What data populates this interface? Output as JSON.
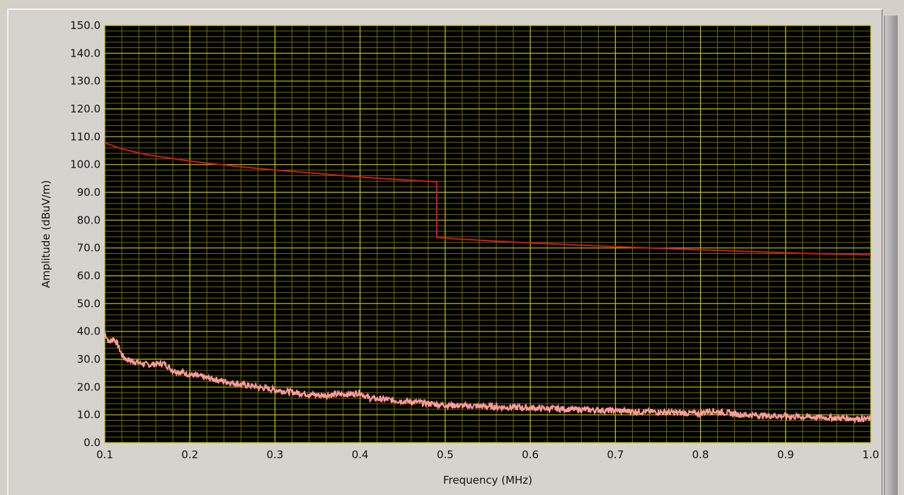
{
  "chart_data": {
    "type": "line",
    "title": "",
    "xlabel": "Frequency (MHz)",
    "ylabel": "Amplitude (dBuV/m)",
    "xlim": [
      0.1,
      1.0
    ],
    "ylim": [
      0.0,
      150.0
    ],
    "x_ticks": [
      "0.1",
      "0.2",
      "0.3",
      "0.4",
      "0.5",
      "0.6",
      "0.7",
      "0.8",
      "0.9",
      "1.0"
    ],
    "y_ticks": [
      "0.0",
      "10.0",
      "20.0",
      "30.0",
      "40.0",
      "50.0",
      "60.0",
      "70.0",
      "80.0",
      "90.0",
      "100.0",
      "110.0",
      "120.0",
      "130.0",
      "140.0",
      "150.0"
    ],
    "grid": true,
    "minor_grid": true,
    "background_color": "#000000",
    "grid_color": "#c8c800",
    "minor_grid_color": "#6e6e00",
    "series": [
      {
        "color": "#cc1a1a",
        "x": [
          0.1,
          0.12,
          0.15,
          0.2,
          0.25,
          0.3,
          0.35,
          0.4,
          0.45,
          0.49,
          0.4901,
          0.5,
          0.55,
          0.6,
          0.65,
          0.7,
          0.75,
          0.8,
          0.85,
          0.9,
          0.95,
          1.0
        ],
        "y": [
          107.8,
          105.6,
          103.5,
          101.2,
          99.5,
          98.0,
          96.8,
          95.5,
          94.5,
          93.8,
          73.8,
          73.5,
          72.6,
          71.8,
          71.1,
          70.5,
          69.9,
          69.3,
          68.8,
          68.3,
          67.8,
          67.5
        ]
      },
      {
        "color": "#ff9a9a",
        "x": [
          0.1,
          0.105,
          0.11,
          0.115,
          0.12,
          0.125,
          0.13,
          0.15,
          0.17,
          0.18,
          0.2,
          0.25,
          0.3,
          0.35,
          0.39,
          0.4,
          0.41,
          0.45,
          0.5,
          0.55,
          0.6,
          0.65,
          0.7,
          0.75,
          0.8,
          0.81,
          0.85,
          0.9,
          0.95,
          1.0
        ],
        "y": [
          39.5,
          36.0,
          37.5,
          35.5,
          31.5,
          30.0,
          29.5,
          28.0,
          28.5,
          26.0,
          24.5,
          21.5,
          19.0,
          17.0,
          17.5,
          18.0,
          16.0,
          15.0,
          13.5,
          13.0,
          12.5,
          12.0,
          11.5,
          11.0,
          10.5,
          11.5,
          10.0,
          9.5,
          9.0,
          8.5
        ]
      }
    ]
  }
}
